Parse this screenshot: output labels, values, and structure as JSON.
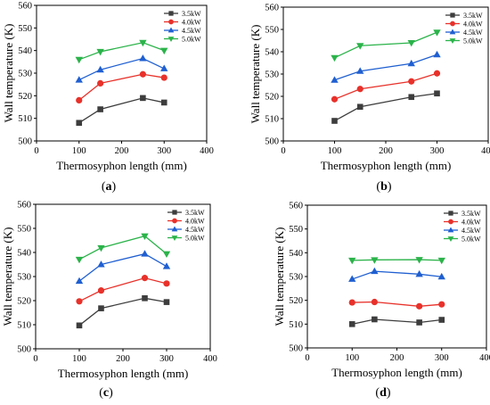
{
  "chart_data": [
    {
      "panel_label": "(a)",
      "type": "line",
      "xlabel": "Thermosyphon length (mm)",
      "ylabel": "Wall temperature (K)",
      "xlim": [
        0,
        400
      ],
      "ylim": [
        500,
        560
      ],
      "xticks": [
        "0",
        "100",
        "200",
        "300",
        "400"
      ],
      "yticks": [
        "500",
        "510",
        "520",
        "530",
        "540",
        "550",
        "560"
      ],
      "legend_position": "top-right",
      "x": [
        100,
        150,
        250,
        300
      ],
      "series": [
        {
          "name": "3.5kW",
          "color": "#3d3d3d",
          "marker": "square",
          "values": [
            508,
            514,
            519,
            517
          ]
        },
        {
          "name": "4.0kW",
          "color": "#e8312a",
          "marker": "circle",
          "values": [
            518,
            525.5,
            529.5,
            528
          ]
        },
        {
          "name": "4.5kW",
          "color": "#1f5fd1",
          "marker": "triangle-up",
          "values": [
            527,
            531.5,
            536.5,
            532
          ]
        },
        {
          "name": "5.0kW",
          "color": "#2bb34a",
          "marker": "triangle-down",
          "values": [
            536,
            539.5,
            543.5,
            540
          ]
        }
      ]
    },
    {
      "panel_label": "(b)",
      "type": "line",
      "xlabel": "Thermosyphon length (mm)",
      "ylabel": "Wall temperature (K)",
      "xlim": [
        0,
        400
      ],
      "ylim": [
        500,
        560
      ],
      "xticks": [
        "0",
        "100",
        "200",
        "300",
        "400"
      ],
      "yticks": [
        "500",
        "510",
        "520",
        "530",
        "540",
        "550",
        "560"
      ],
      "legend_position": "top-right",
      "x": [
        100,
        150,
        250,
        300
      ],
      "series": [
        {
          "name": "3.5kW",
          "color": "#3d3d3d",
          "marker": "square",
          "values": [
            509,
            515.3,
            519.7,
            521.3
          ]
        },
        {
          "name": "4.0kW",
          "color": "#e8312a",
          "marker": "circle",
          "values": [
            518.7,
            523.3,
            526.7,
            530.3
          ]
        },
        {
          "name": "4.5kW",
          "color": "#1f5fd1",
          "marker": "triangle-up",
          "values": [
            527.3,
            531.3,
            534.7,
            538.7
          ]
        },
        {
          "name": "5.0kW",
          "color": "#2bb34a",
          "marker": "triangle-down",
          "values": [
            537.3,
            542.7,
            544,
            548.7
          ]
        }
      ]
    },
    {
      "panel_label": "(c)",
      "type": "line",
      "xlabel": "Thermosyphon length (mm)",
      "ylabel": "Wall temperature (K)",
      "xlim": [
        0,
        400
      ],
      "ylim": [
        500,
        560
      ],
      "xticks": [
        "0",
        "100",
        "200",
        "300",
        "400"
      ],
      "yticks": [
        "500",
        "510",
        "520",
        "530",
        "540",
        "550",
        "560"
      ],
      "legend_position": "top-right",
      "x": [
        100,
        150,
        250,
        300
      ],
      "series": [
        {
          "name": "3.5kW",
          "color": "#3d3d3d",
          "marker": "square",
          "values": [
            509.7,
            516.8,
            521,
            519.4
          ]
        },
        {
          "name": "4.0kW",
          "color": "#e8312a",
          "marker": "circle",
          "values": [
            519.7,
            524.2,
            529.4,
            527.1
          ]
        },
        {
          "name": "4.5kW",
          "color": "#1f5fd1",
          "marker": "triangle-up",
          "values": [
            528.1,
            535,
            539.4,
            534.2
          ]
        },
        {
          "name": "5.0kW",
          "color": "#2bb34a",
          "marker": "triangle-down",
          "values": [
            537.1,
            541.9,
            546.8,
            539.4
          ]
        }
      ]
    },
    {
      "panel_label": "(d)",
      "type": "line",
      "xlabel": "Thermosyphon length (mm)",
      "ylabel": "Wall temperature (K)",
      "xlim": [
        0,
        400
      ],
      "ylim": [
        500,
        560
      ],
      "xticks": [
        "0",
        "100",
        "200",
        "300",
        "400"
      ],
      "yticks": [
        "500",
        "510",
        "520",
        "530",
        "540",
        "550",
        "560"
      ],
      "legend_position": "top-right",
      "x": [
        100,
        150,
        250,
        300
      ],
      "series": [
        {
          "name": "3.5kW",
          "color": "#3d3d3d",
          "marker": "square",
          "values": [
            510,
            512,
            510.7,
            511.8
          ]
        },
        {
          "name": "4.0kW",
          "color": "#e8312a",
          "marker": "circle",
          "values": [
            519.1,
            519.3,
            517.5,
            518.3
          ]
        },
        {
          "name": "4.5kW",
          "color": "#1f5fd1",
          "marker": "triangle-up",
          "values": [
            528.9,
            532.2,
            531,
            529.9
          ]
        },
        {
          "name": "5.0kW",
          "color": "#2bb34a",
          "marker": "triangle-down",
          "values": [
            536.8,
            537,
            537.1,
            536.8
          ]
        }
      ]
    }
  ]
}
